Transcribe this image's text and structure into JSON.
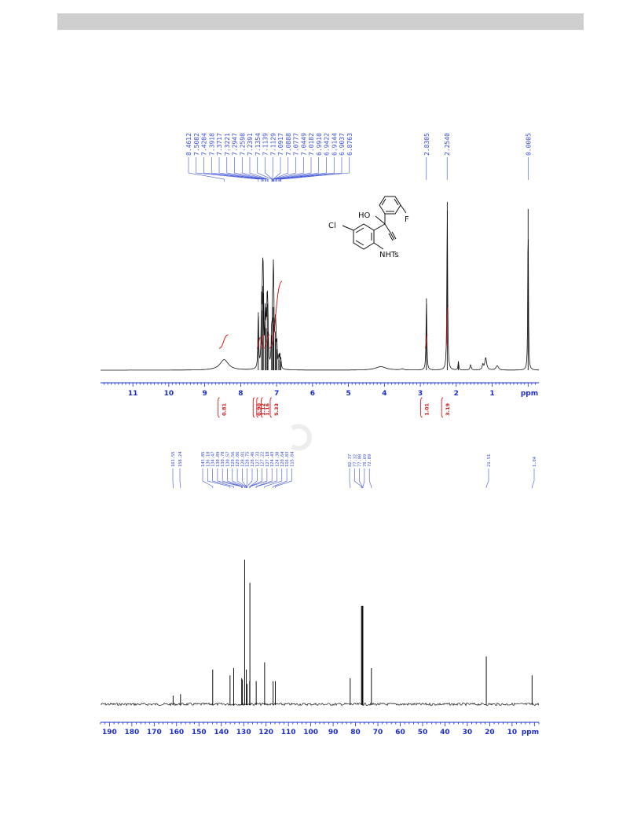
{
  "chart_data": [
    {
      "type": "line",
      "nucleus": "1H",
      "axis_unit": "ppm",
      "xlim": [
        11.9,
        -0.3
      ],
      "ticks": [
        "11",
        "10",
        "9",
        "8",
        "7",
        "6",
        "5",
        "4",
        "3",
        "2",
        "1"
      ],
      "peak_labels": [
        "8.4612",
        "7.5082",
        "7.4204",
        "7.3918",
        "7.3717",
        "7.3221",
        "7.2947",
        "7.2598",
        "7.2391",
        "7.1354",
        "7.1139",
        "7.1129",
        "7.0917",
        "7.0888",
        "7.0777",
        "7.0449",
        "7.0182",
        "6.9910",
        "6.9422",
        "6.9144",
        "6.9037",
        "6.8763",
        "2.8305",
        "2.2540",
        "0.0005"
      ],
      "peaks": [
        {
          "x": 8.46,
          "h": 0.06,
          "w": 0.14
        },
        {
          "x": 7.51,
          "h": 0.33,
          "w": 0.012
        },
        {
          "x": 7.42,
          "h": 0.34,
          "w": 0.012
        },
        {
          "x": 7.39,
          "h": 0.48,
          "w": 0.012
        },
        {
          "x": 7.37,
          "h": 0.44,
          "w": 0.012
        },
        {
          "x": 7.32,
          "h": 0.28,
          "w": 0.012
        },
        {
          "x": 7.29,
          "h": 0.24,
          "w": 0.012
        },
        {
          "x": 7.26,
          "h": 0.38,
          "w": 0.012
        },
        {
          "x": 7.24,
          "h": 0.22,
          "w": 0.012
        },
        {
          "x": 7.14,
          "h": 0.2,
          "w": 0.012
        },
        {
          "x": 7.11,
          "h": 0.3,
          "w": 0.012
        },
        {
          "x": 7.09,
          "h": 0.36,
          "w": 0.012
        },
        {
          "x": 7.08,
          "h": 0.26,
          "w": 0.012
        },
        {
          "x": 7.04,
          "h": 0.22,
          "w": 0.012
        },
        {
          "x": 7.02,
          "h": 0.18,
          "w": 0.012
        },
        {
          "x": 6.99,
          "h": 0.12,
          "w": 0.012
        },
        {
          "x": 6.94,
          "h": 0.06,
          "w": 0.012
        },
        {
          "x": 6.91,
          "h": 0.08,
          "w": 0.012
        },
        {
          "x": 6.88,
          "h": 0.05,
          "w": 0.012
        },
        {
          "x": 4.1,
          "h": 0.02,
          "w": 0.18
        },
        {
          "x": 3.5,
          "h": 0.006,
          "w": 0.05
        },
        {
          "x": 2.83,
          "h": 0.41,
          "w": 0.012
        },
        {
          "x": 2.25,
          "h": 0.96,
          "w": 0.012
        },
        {
          "x": 1.94,
          "h": 0.05,
          "w": 0.012
        },
        {
          "x": 1.6,
          "h": 0.03,
          "w": 0.02
        },
        {
          "x": 1.26,
          "h": 0.03,
          "w": 0.02
        },
        {
          "x": 1.18,
          "h": 0.07,
          "w": 0.03
        },
        {
          "x": 0.86,
          "h": 0.025,
          "w": 0.04
        },
        {
          "x": 0.0,
          "h": 0.92,
          "w": 0.01
        }
      ],
      "integrals": [
        {
          "value": "0.81",
          "from": 8.6,
          "to": 8.35,
          "rise": 0.2
        },
        {
          "value": "0.90",
          "from": 7.55,
          "to": 7.45,
          "rise": 0.16
        },
        {
          "value": "1.12",
          "from": 7.45,
          "to": 7.35,
          "rise": 0.2
        },
        {
          "value": "1.16",
          "from": 7.35,
          "to": 7.2,
          "rise": 0.2
        },
        {
          "value": "5.33",
          "from": 7.2,
          "to": 6.85,
          "rise": 1.0
        },
        {
          "value": "1.01",
          "from": 2.87,
          "to": 2.8,
          "rise": 0.2
        },
        {
          "value": "3.19",
          "from": 2.29,
          "to": 2.22,
          "rise": 0.63
        }
      ]
    },
    {
      "type": "line",
      "nucleus": "13C",
      "axis_unit": "ppm",
      "xlim": [
        194,
        -2
      ],
      "ticks": [
        "190",
        "180",
        "170",
        "160",
        "150",
        "140",
        "130",
        "120",
        "110",
        "100",
        "90",
        "80",
        "70",
        "60",
        "50",
        "40",
        "30",
        "20",
        "10"
      ],
      "peak_labels": [
        "161.55",
        "158.24",
        "143.85",
        "136.10",
        "134.47",
        "130.89",
        "130.78",
        "130.57",
        "129.56",
        "129.06",
        "128.81",
        "128.75",
        "128.46",
        "127.33",
        "127.22",
        "127.18",
        "124.43",
        "124.38",
        "120.64",
        "116.83",
        "115.84",
        "82.37",
        "77.32",
        "77.00",
        "76.69",
        "72.89",
        "21.51",
        "1.04"
      ],
      "peaks": [
        {
          "x": 161.55,
          "h": 0.06
        },
        {
          "x": 158.24,
          "h": 0.07
        },
        {
          "x": 143.85,
          "h": 0.24
        },
        {
          "x": 136.1,
          "h": 0.2
        },
        {
          "x": 134.47,
          "h": 0.25
        },
        {
          "x": 130.89,
          "h": 0.18
        },
        {
          "x": 130.57,
          "h": 0.17
        },
        {
          "x": 129.56,
          "h": 1.0
        },
        {
          "x": 128.81,
          "h": 0.24
        },
        {
          "x": 128.46,
          "h": 0.14
        },
        {
          "x": 127.33,
          "h": 0.16
        },
        {
          "x": 127.22,
          "h": 0.84
        },
        {
          "x": 124.4,
          "h": 0.16
        },
        {
          "x": 120.64,
          "h": 0.29
        },
        {
          "x": 116.83,
          "h": 0.16
        },
        {
          "x": 115.84,
          "h": 0.16
        },
        {
          "x": 82.37,
          "h": 0.18
        },
        {
          "x": 77.32,
          "h": 0.68
        },
        {
          "x": 77.0,
          "h": 0.68
        },
        {
          "x": 76.69,
          "h": 0.68
        },
        {
          "x": 72.89,
          "h": 0.25
        },
        {
          "x": 21.51,
          "h": 0.33
        },
        {
          "x": 1.04,
          "h": 0.2
        }
      ]
    }
  ],
  "molecule": {
    "labels": {
      "ho": "HO",
      "f": "F",
      "cl": "Cl",
      "nhts": "NHTs"
    }
  },
  "colors": {
    "spectrum": "#111111",
    "axis": "#1a2bd0",
    "peak_label": "#3a4fd6",
    "integral": "#d21a1a",
    "header_bar": "#cfcfcf"
  }
}
